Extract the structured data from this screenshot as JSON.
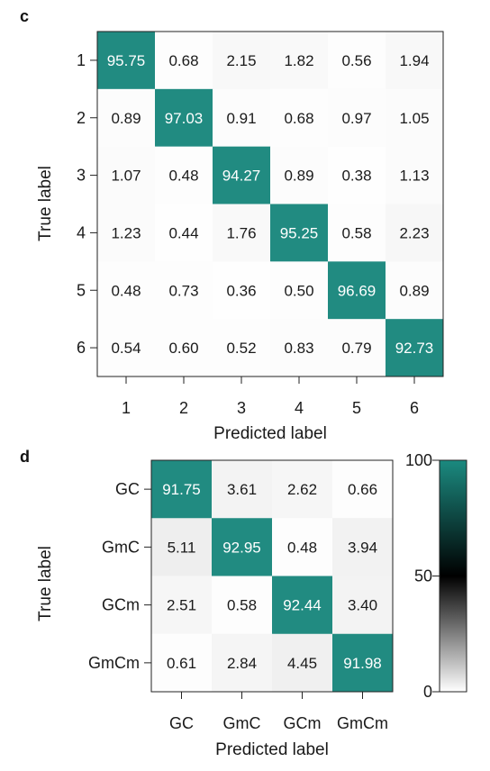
{
  "chart_data": [
    {
      "type": "heatmap",
      "panel": "c",
      "xlabel": "Predicted label",
      "ylabel": "True label",
      "x_categories": [
        "1",
        "2",
        "3",
        "4",
        "5",
        "6"
      ],
      "y_categories": [
        "1",
        "2",
        "3",
        "4",
        "5",
        "6"
      ],
      "values": [
        [
          "95.75",
          "0.68",
          "2.15",
          "1.82",
          "0.56",
          "1.94"
        ],
        [
          "0.89",
          "97.03",
          "0.91",
          "0.68",
          "0.97",
          "1.05"
        ],
        [
          "1.07",
          "0.48",
          "94.27",
          "0.89",
          "0.38",
          "1.13"
        ],
        [
          "1.23",
          "0.44",
          "1.76",
          "95.25",
          "0.58",
          "2.23"
        ],
        [
          "0.48",
          "0.73",
          "0.36",
          "0.50",
          "96.69",
          "0.89"
        ],
        [
          "0.54",
          "0.60",
          "0.52",
          "0.83",
          "0.79",
          "92.73"
        ]
      ]
    },
    {
      "type": "heatmap",
      "panel": "d",
      "xlabel": "Predicted label",
      "ylabel": "True label",
      "x_categories": [
        "GC",
        "GmC",
        "GCm",
        "GmCm"
      ],
      "y_categories": [
        "GC",
        "GmC",
        "GCm",
        "GmCm"
      ],
      "values": [
        [
          "91.75",
          "3.61",
          "2.62",
          "0.66"
        ],
        [
          "5.11",
          "92.95",
          "0.48",
          "3.94"
        ],
        [
          "2.51",
          "0.58",
          "92.44",
          "3.40"
        ],
        [
          "0.61",
          "2.84",
          "4.45",
          "91.98"
        ]
      ]
    }
  ],
  "colorbar": {
    "min": 0,
    "max": 100,
    "ticks": [
      "0",
      "50",
      "100"
    ],
    "colors": [
      "#ffffff",
      "#000000",
      "#1b8a80"
    ]
  },
  "colors": {
    "high": "#218b81",
    "low_text": "#1a1a1a",
    "high_text": "#ffffff"
  }
}
